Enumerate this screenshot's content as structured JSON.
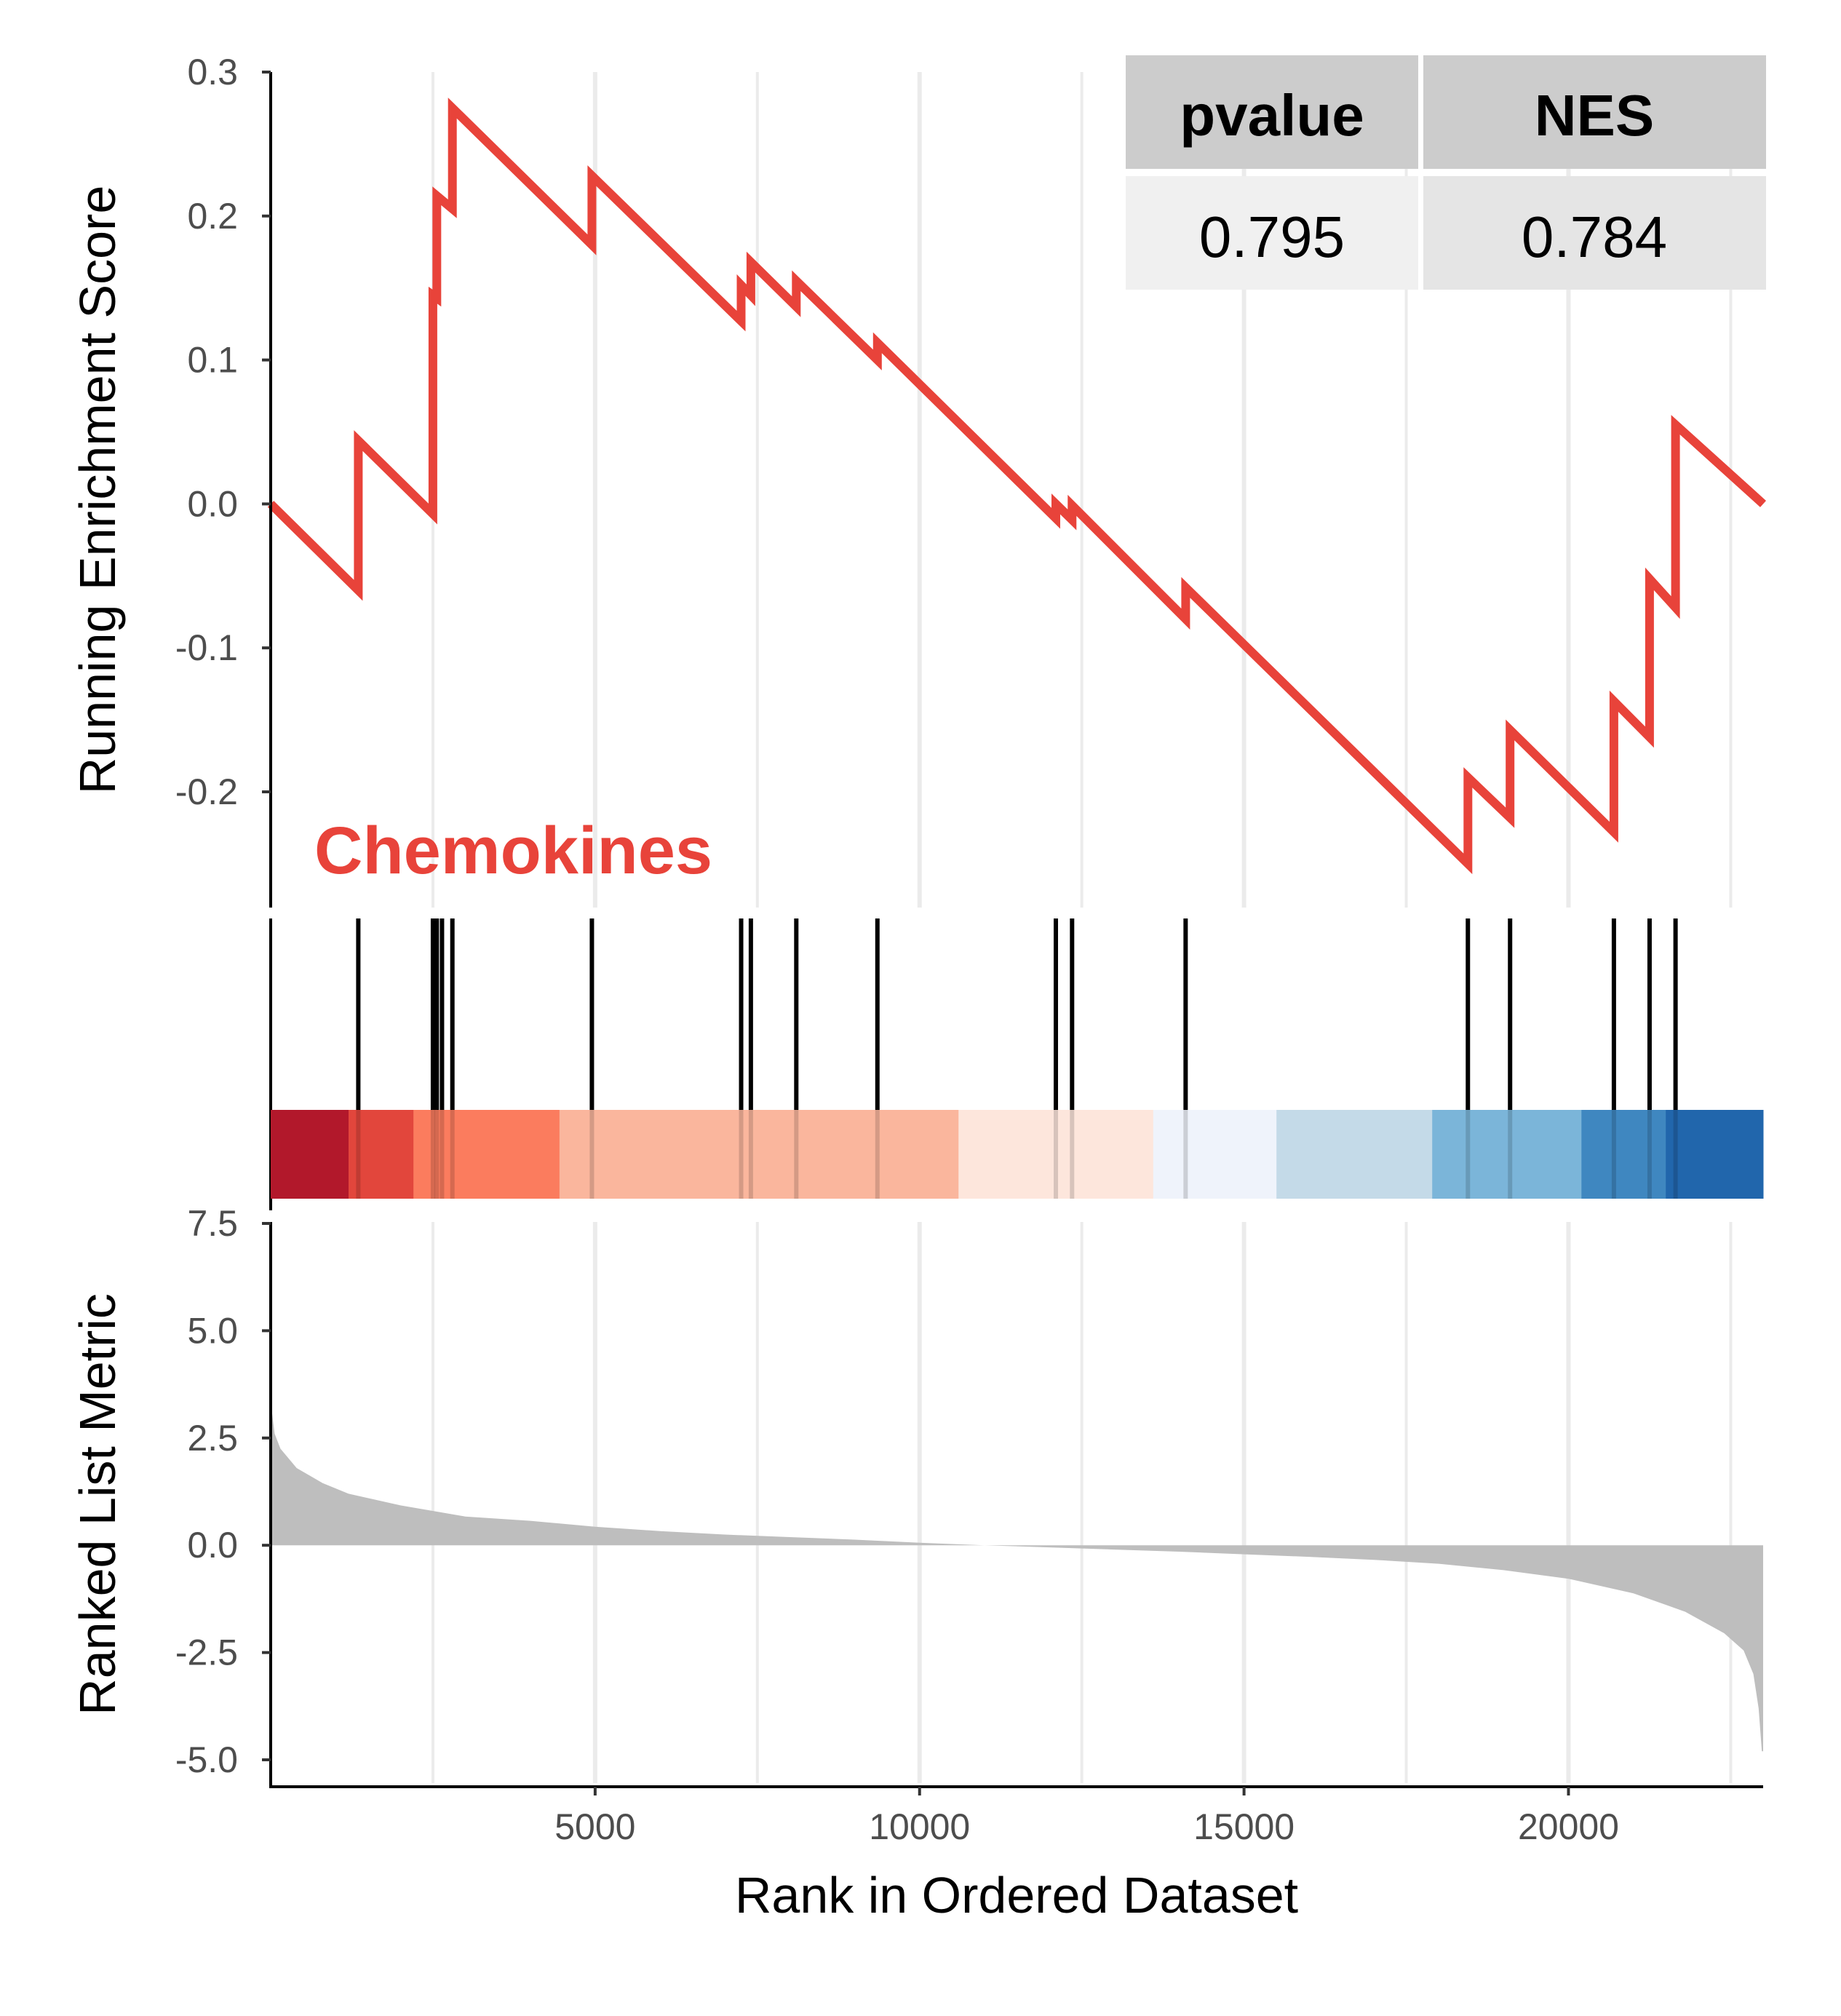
{
  "chart_data": {
    "type": "line",
    "gene_set": "Chemokines",
    "colors": {
      "es_line": "#E8433A",
      "set_label": "#E8433A",
      "metric_fill": "#BEBEBE",
      "grid": "#EBEBEB",
      "table_header_bg": "#CCCCCC",
      "table_cell_bg_1": "#F0F0F0",
      "table_cell_bg_2": "#E5E5E5"
    },
    "x_axis": {
      "label": "Rank in Ordered Dataset",
      "range": [
        0,
        23000
      ],
      "ticks": [
        5000,
        10000,
        15000,
        20000
      ],
      "tick_labels": [
        "5000",
        "10000",
        "15000",
        "20000"
      ]
    },
    "enrichment_panel": {
      "ylabel": "Running Enrichment Score",
      "ylim": [
        -0.27,
        0.3
      ],
      "yticks": [
        -0.2,
        -0.1,
        0.0,
        0.1,
        0.2,
        0.3
      ],
      "ytick_labels": [
        "-0.2",
        "-0.1",
        "0.0",
        "0.1",
        "0.2",
        "0.3"
      ],
      "hits": [
        1350,
        2500,
        2560,
        2640,
        2800,
        4950,
        7250,
        7400,
        8100,
        9350,
        12100,
        12350,
        14100,
        18450,
        19100,
        20700,
        21250,
        21650
      ],
      "curve": [
        {
          "x": 0,
          "y": 0.0
        },
        {
          "x": 1350,
          "y": -0.06
        },
        {
          "x": 1350,
          "y": 0.044
        },
        {
          "x": 2500,
          "y": -0.007
        },
        {
          "x": 2500,
          "y": 0.07
        },
        {
          "x": 2500,
          "y": 0.145
        },
        {
          "x": 2560,
          "y": 0.143
        },
        {
          "x": 2560,
          "y": 0.214
        },
        {
          "x": 2800,
          "y": 0.205
        },
        {
          "x": 2800,
          "y": 0.275
        },
        {
          "x": 4950,
          "y": 0.18
        },
        {
          "x": 4950,
          "y": 0.228
        },
        {
          "x": 7250,
          "y": 0.127
        },
        {
          "x": 7250,
          "y": 0.152
        },
        {
          "x": 7400,
          "y": 0.145
        },
        {
          "x": 7400,
          "y": 0.168
        },
        {
          "x": 8100,
          "y": 0.137
        },
        {
          "x": 8100,
          "y": 0.155
        },
        {
          "x": 9350,
          "y": 0.1
        },
        {
          "x": 9350,
          "y": 0.112
        },
        {
          "x": 12100,
          "y": -0.01
        },
        {
          "x": 12100,
          "y": 0.0
        },
        {
          "x": 12350,
          "y": -0.011
        },
        {
          "x": 12350,
          "y": -0.001
        },
        {
          "x": 14100,
          "y": -0.08
        },
        {
          "x": 14100,
          "y": -0.058
        },
        {
          "x": 18450,
          "y": -0.25
        },
        {
          "x": 18450,
          "y": -0.19
        },
        {
          "x": 19100,
          "y": -0.218
        },
        {
          "x": 19100,
          "y": -0.157
        },
        {
          "x": 20700,
          "y": -0.228
        },
        {
          "x": 20700,
          "y": -0.137
        },
        {
          "x": 21250,
          "y": -0.162
        },
        {
          "x": 21250,
          "y": -0.052
        },
        {
          "x": 21650,
          "y": -0.072
        },
        {
          "x": 21650,
          "y": 0.055
        },
        {
          "x": 23000,
          "y": 0.0
        }
      ]
    },
    "color_bar": {
      "segments": [
        {
          "start": 0,
          "end": 1200,
          "color": "#B2182B"
        },
        {
          "start": 1200,
          "end": 2200,
          "color": "#E2463C"
        },
        {
          "start": 2200,
          "end": 4450,
          "color": "#FB7C5E"
        },
        {
          "start": 4450,
          "end": 10600,
          "color": "#FAB69D"
        },
        {
          "start": 10600,
          "end": 13600,
          "color": "#FDE6DC"
        },
        {
          "start": 13600,
          "end": 15500,
          "color": "#EFF3FB"
        },
        {
          "start": 15500,
          "end": 17900,
          "color": "#C4DAE8"
        },
        {
          "start": 17900,
          "end": 20200,
          "color": "#7BB5D9"
        },
        {
          "start": 20200,
          "end": 21500,
          "color": "#3F87C0"
        },
        {
          "start": 21500,
          "end": 23000,
          "color": "#2166AC"
        }
      ]
    },
    "metric_panel": {
      "ylabel": "Ranked List Metric",
      "ylim": [
        -5.3,
        7.5
      ],
      "yticks": [
        -5.0,
        -2.5,
        0.0,
        2.5,
        5.0,
        7.5
      ],
      "ytick_labels": [
        "-5.0",
        "-2.5",
        "0.0",
        "2.5",
        "5.0",
        "7.5"
      ],
      "profile": [
        {
          "x": 0,
          "y": 3.6
        },
        {
          "x": 20,
          "y": 3.1
        },
        {
          "x": 60,
          "y": 2.6
        },
        {
          "x": 150,
          "y": 2.25
        },
        {
          "x": 400,
          "y": 1.8
        },
        {
          "x": 800,
          "y": 1.45
        },
        {
          "x": 1200,
          "y": 1.2
        },
        {
          "x": 2000,
          "y": 0.93
        },
        {
          "x": 3000,
          "y": 0.67
        },
        {
          "x": 4000,
          "y": 0.57
        },
        {
          "x": 5000,
          "y": 0.43
        },
        {
          "x": 6000,
          "y": 0.33
        },
        {
          "x": 7000,
          "y": 0.25
        },
        {
          "x": 8000,
          "y": 0.19
        },
        {
          "x": 9000,
          "y": 0.13
        },
        {
          "x": 10000,
          "y": 0.06
        },
        {
          "x": 11000,
          "y": 0.0
        },
        {
          "x": 12000,
          "y": -0.05
        },
        {
          "x": 13000,
          "y": -0.1
        },
        {
          "x": 14000,
          "y": -0.15
        },
        {
          "x": 15000,
          "y": -0.21
        },
        {
          "x": 16000,
          "y": -0.27
        },
        {
          "x": 17000,
          "y": -0.34
        },
        {
          "x": 18000,
          "y": -0.43
        },
        {
          "x": 19000,
          "y": -0.58
        },
        {
          "x": 20000,
          "y": -0.78
        },
        {
          "x": 21000,
          "y": -1.12
        },
        {
          "x": 21800,
          "y": -1.55
        },
        {
          "x": 22400,
          "y": -2.05
        },
        {
          "x": 22700,
          "y": -2.45
        },
        {
          "x": 22850,
          "y": -3.0
        },
        {
          "x": 22930,
          "y": -3.8
        },
        {
          "x": 22980,
          "y": -4.8
        },
        {
          "x": 23000,
          "y": -4.8
        }
      ]
    },
    "table": {
      "headers": [
        "pvalue",
        "NES"
      ],
      "values": [
        "0.795",
        "0.784"
      ]
    }
  }
}
